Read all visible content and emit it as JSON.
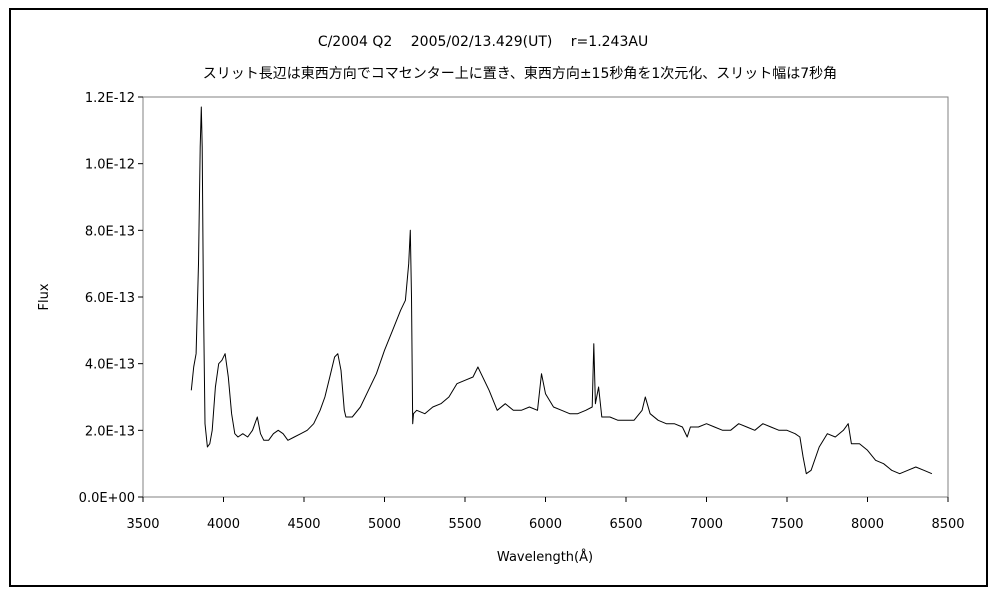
{
  "chart_data": {
    "type": "line",
    "title": "C/2004 Q2　 2005/02/13.429(UT)　 r=1.243AU",
    "subtitle": "スリット長辺は東西方向でコマセンター上に置き、東西方向±15秒角を1次元化、スリット幅は7秒角",
    "xlabel": "Wavelength(Å)",
    "ylabel": "Flux",
    "xlim": [
      3500,
      8500
    ],
    "ylim": [
      0,
      1.2e-12
    ],
    "x_ticks": [
      3500,
      4000,
      4500,
      5000,
      5500,
      6000,
      6500,
      7000,
      7500,
      8000,
      8500
    ],
    "x_tick_labels": [
      "3500",
      "4000",
      "4500",
      "5000",
      "5500",
      "6000",
      "6500",
      "7000",
      "7500",
      "8000",
      "8500"
    ],
    "y_ticks": [
      0,
      2e-13,
      4e-13,
      6e-13,
      8e-13,
      1e-12,
      1.2e-12
    ],
    "y_tick_labels": [
      "0.0E+00",
      "2.0E-13",
      "4.0E-13",
      "6.0E-13",
      "8.0E-13",
      "1.0E-12",
      "1.2E-12"
    ],
    "grid": false,
    "legend": "none",
    "series": [
      {
        "color": "#000000",
        "x": [
          3800,
          3815,
          3830,
          3845,
          3855,
          3862,
          3868,
          3875,
          3885,
          3900,
          3915,
          3930,
          3950,
          3970,
          3990,
          4010,
          4030,
          4050,
          4070,
          4090,
          4120,
          4150,
          4180,
          4210,
          4230,
          4250,
          4280,
          4310,
          4340,
          4370,
          4400,
          4440,
          4480,
          4520,
          4560,
          4600,
          4630,
          4660,
          4690,
          4710,
          4730,
          4750,
          4760,
          4800,
          4850,
          4900,
          4950,
          5000,
          5050,
          5100,
          5130,
          5150,
          5160,
          5168,
          5175,
          5180,
          5200,
          5250,
          5300,
          5350,
          5400,
          5450,
          5500,
          5550,
          5580,
          5600,
          5650,
          5700,
          5750,
          5800,
          5850,
          5900,
          5950,
          5975,
          6000,
          6050,
          6100,
          6150,
          6200,
          6250,
          6290,
          6300,
          6310,
          6330,
          6350,
          6400,
          6450,
          6500,
          6550,
          6600,
          6620,
          6650,
          6700,
          6750,
          6800,
          6850,
          6880,
          6900,
          6950,
          7000,
          7050,
          7100,
          7150,
          7200,
          7250,
          7300,
          7350,
          7400,
          7450,
          7500,
          7550,
          7580,
          7600,
          7620,
          7650,
          7700,
          7750,
          7800,
          7850,
          7880,
          7900,
          7950,
          8000,
          8050,
          8100,
          8150,
          8200,
          8250,
          8300,
          8350,
          8400
        ],
        "values": [
          3.2e-13,
          3.9e-13,
          4.3e-13,
          7e-13,
          1.05e-12,
          1.17e-12,
          1.05e-12,
          6e-13,
          2.2e-13,
          1.5e-13,
          1.6e-13,
          2e-13,
          3.3e-13,
          4e-13,
          4.1e-13,
          4.3e-13,
          3.6e-13,
          2.5e-13,
          1.9e-13,
          1.8e-13,
          1.9e-13,
          1.8e-13,
          2e-13,
          2.4e-13,
          1.9e-13,
          1.7e-13,
          1.7e-13,
          1.9e-13,
          2e-13,
          1.9e-13,
          1.7e-13,
          1.8e-13,
          1.9e-13,
          2e-13,
          2.2e-13,
          2.6e-13,
          3e-13,
          3.6e-13,
          4.2e-13,
          4.3e-13,
          3.8e-13,
          2.6e-13,
          2.4e-13,
          2.4e-13,
          2.7e-13,
          3.2e-13,
          3.7e-13,
          4.4e-13,
          5e-13,
          5.6e-13,
          5.9e-13,
          7e-13,
          8e-13,
          6e-13,
          2.2e-13,
          2.5e-13,
          2.6e-13,
          2.5e-13,
          2.7e-13,
          2.8e-13,
          3e-13,
          3.4e-13,
          3.5e-13,
          3.6e-13,
          3.9e-13,
          3.7e-13,
          3.2e-13,
          2.6e-13,
          2.8e-13,
          2.6e-13,
          2.6e-13,
          2.7e-13,
          2.6e-13,
          3.7e-13,
          3.1e-13,
          2.7e-13,
          2.6e-13,
          2.5e-13,
          2.5e-13,
          2.6e-13,
          2.7e-13,
          4.6e-13,
          2.8e-13,
          3.3e-13,
          2.4e-13,
          2.4e-13,
          2.3e-13,
          2.3e-13,
          2.3e-13,
          2.6e-13,
          3e-13,
          2.5e-13,
          2.3e-13,
          2.2e-13,
          2.2e-13,
          2.1e-13,
          1.8e-13,
          2.1e-13,
          2.1e-13,
          2.2e-13,
          2.1e-13,
          2e-13,
          2e-13,
          2.2e-13,
          2.1e-13,
          2e-13,
          2.2e-13,
          2.1e-13,
          2e-13,
          2e-13,
          1.9e-13,
          1.8e-13,
          1.2e-13,
          7e-14,
          8e-14,
          1.5e-13,
          1.9e-13,
          1.8e-13,
          2e-13,
          2.2e-13,
          1.6e-13,
          1.6e-13,
          1.4e-13,
          1.1e-13,
          1e-13,
          8e-14,
          7e-14,
          8e-14,
          9e-14,
          8e-14,
          7e-14
        ]
      }
    ]
  }
}
